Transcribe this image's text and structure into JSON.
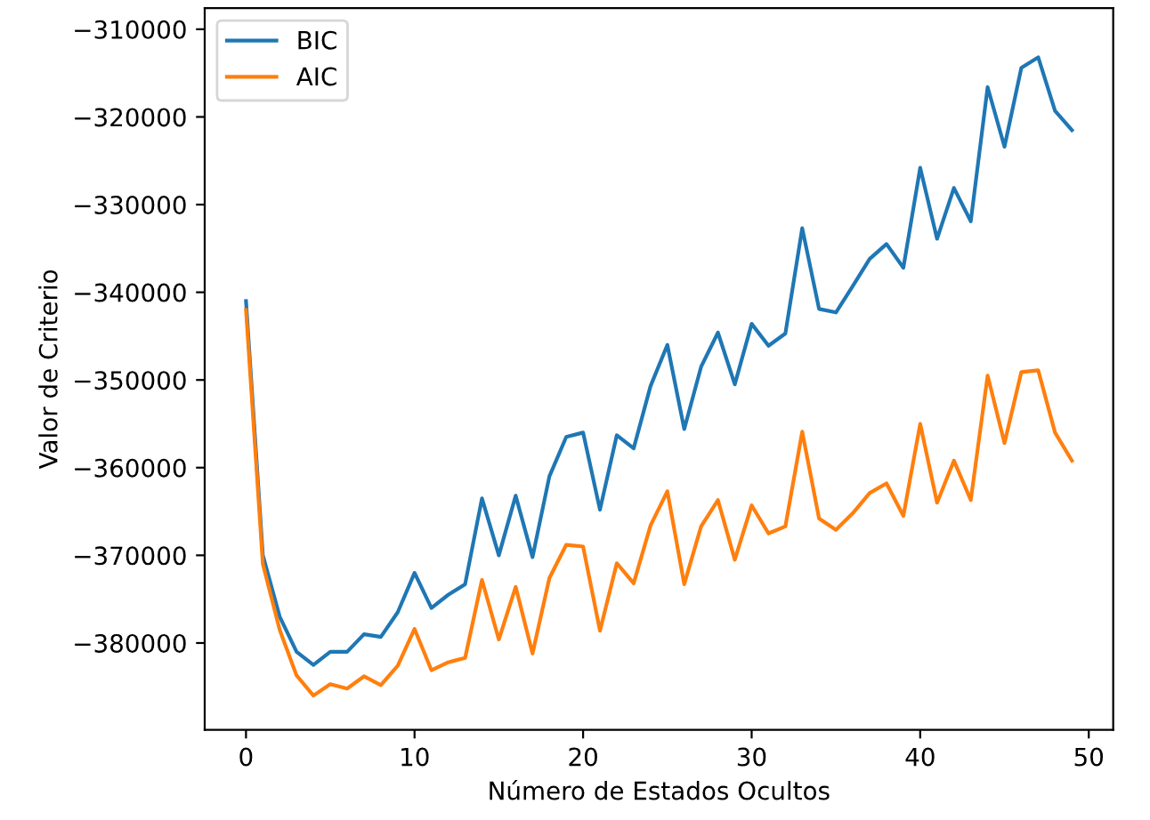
{
  "chart_data": {
    "type": "line",
    "xlabel": "Número de Estados Ocultos",
    "ylabel": "Valor de Criterio",
    "x": [
      0,
      1,
      2,
      3,
      4,
      5,
      6,
      7,
      8,
      9,
      10,
      11,
      12,
      13,
      14,
      15,
      16,
      17,
      18,
      19,
      20,
      21,
      22,
      23,
      24,
      25,
      26,
      27,
      28,
      29,
      30,
      31,
      32,
      33,
      34,
      35,
      36,
      37,
      38,
      39,
      40,
      41,
      42,
      43,
      44,
      45,
      46,
      47,
      48,
      49
    ],
    "series": [
      {
        "name": "BIC",
        "color": "#1f77b4",
        "values": [
          -341000,
          -370000,
          -377000,
          -381000,
          -382500,
          -381000,
          -381000,
          -379000,
          -379300,
          -376500,
          -372000,
          -376000,
          -374500,
          -373300,
          -363500,
          -370000,
          -363200,
          -370200,
          -361000,
          -356500,
          -356000,
          -364800,
          -356300,
          -357800,
          -350700,
          -346000,
          -355600,
          -348500,
          -344600,
          -350500,
          -343600,
          -346100,
          -344700,
          -332700,
          -341900,
          -342300,
          -339300,
          -336200,
          -334500,
          -337200,
          -325800,
          -333900,
          -328100,
          -331900,
          -316600,
          -323400,
          -314400,
          -313200,
          -319300,
          -321500
        ]
      },
      {
        "name": "AIC",
        "color": "#ff7f0e",
        "values": [
          -342000,
          -371000,
          -378500,
          -383700,
          -386000,
          -384700,
          -385200,
          -383800,
          -384800,
          -382600,
          -378400,
          -383100,
          -382200,
          -381700,
          -372800,
          -379600,
          -373600,
          -381200,
          -372600,
          -368800,
          -369000,
          -378600,
          -370900,
          -373200,
          -366600,
          -362700,
          -373300,
          -366700,
          -363700,
          -370500,
          -364300,
          -367500,
          -366700,
          -355900,
          -365800,
          -367100,
          -365200,
          -362900,
          -361800,
          -365500,
          -355000,
          -364000,
          -359200,
          -363700,
          -349500,
          -357200,
          -349100,
          -348900,
          -356000,
          -359200
        ]
      }
    ],
    "xlim": [
      -2.45,
      51.45
    ],
    "ylim": [
      -389900,
      -307600
    ],
    "xticks": [
      0,
      10,
      20,
      30,
      40,
      50
    ],
    "yticks": [
      {
        "value": -380000,
        "label": "−380000"
      },
      {
        "value": -370000,
        "label": "−370000"
      },
      {
        "value": -360000,
        "label": "−360000"
      },
      {
        "value": -350000,
        "label": "−350000"
      },
      {
        "value": -340000,
        "label": "−340000"
      },
      {
        "value": -330000,
        "label": "−330000"
      },
      {
        "value": -320000,
        "label": "−320000"
      },
      {
        "value": -310000,
        "label": "−310000"
      }
    ],
    "legend": "top left",
    "grid": false,
    "marker": "none",
    "line_style": "solid"
  }
}
